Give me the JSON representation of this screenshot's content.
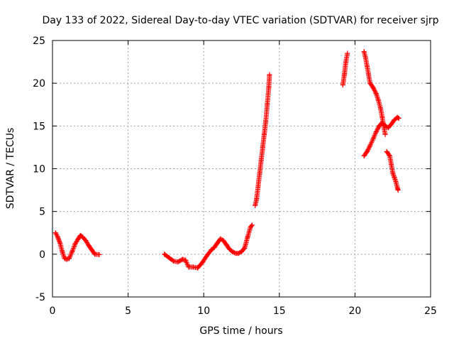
{
  "chart_data": {
    "type": "scatter",
    "title": "Day 133 of 2022, Sidereal Day-to-day VTEC variation (SDTVAR) for receiver sjrp",
    "xlabel": "GPS time / hours",
    "ylabel": "SDTVAR / TECUs",
    "xlim": [
      0,
      25
    ],
    "ylim": [
      -5,
      25
    ],
    "xticks": [
      "0",
      "5",
      "10",
      "15",
      "20",
      "25"
    ],
    "yticks": [
      "-5",
      "0",
      "5",
      "10",
      "15",
      "20",
      "25"
    ],
    "grid": true,
    "marker": "+",
    "color": "#ff0000",
    "segments": [
      [
        [
          0.2,
          2.5
        ],
        [
          0.35,
          2.0
        ],
        [
          0.5,
          1.3
        ],
        [
          0.65,
          0.3
        ],
        [
          0.8,
          -0.5
        ],
        [
          0.95,
          -0.6
        ],
        [
          1.1,
          -0.5
        ],
        [
          1.3,
          0.3
        ],
        [
          1.5,
          1.2
        ],
        [
          1.7,
          1.8
        ],
        [
          1.85,
          2.2
        ],
        [
          2.0,
          2.0
        ],
        [
          2.2,
          1.6
        ],
        [
          2.4,
          1.0
        ],
        [
          2.6,
          0.5
        ],
        [
          2.8,
          0.0
        ],
        [
          3.1,
          -0.05
        ]
      ],
      [
        [
          7.4,
          0.0
        ],
        [
          7.7,
          -0.4
        ],
        [
          8.0,
          -0.8
        ],
        [
          8.3,
          -0.9
        ],
        [
          8.6,
          -0.6
        ],
        [
          8.8,
          -0.7
        ],
        [
          9.0,
          -1.5
        ],
        [
          9.3,
          -1.5
        ],
        [
          9.6,
          -1.6
        ],
        [
          9.9,
          -1.0
        ],
        [
          10.2,
          -0.2
        ],
        [
          10.5,
          0.5
        ],
        [
          10.7,
          0.8
        ],
        [
          10.9,
          1.3
        ],
        [
          11.1,
          1.8
        ],
        [
          11.3,
          1.6
        ],
        [
          11.5,
          1.1
        ],
        [
          11.7,
          0.6
        ],
        [
          11.9,
          0.3
        ],
        [
          12.1,
          0.1
        ],
        [
          12.3,
          0.1
        ],
        [
          12.5,
          0.3
        ],
        [
          12.7,
          0.7
        ],
        [
          12.9,
          2.0
        ],
        [
          13.1,
          3.2
        ],
        [
          13.2,
          3.4
        ]
      ],
      [
        [
          13.4,
          5.7
        ],
        [
          13.5,
          6.5
        ],
        [
          13.6,
          8.0
        ],
        [
          13.7,
          9.5
        ],
        [
          13.8,
          11.0
        ],
        [
          13.9,
          12.5
        ],
        [
          14.0,
          14.0
        ],
        [
          14.1,
          15.5
        ],
        [
          14.2,
          17.5
        ],
        [
          14.3,
          19.5
        ],
        [
          14.35,
          21.0
        ]
      ],
      [
        [
          19.2,
          19.8
        ],
        [
          19.3,
          21.0
        ],
        [
          19.4,
          22.5
        ],
        [
          19.5,
          23.5
        ]
      ],
      [
        [
          20.6,
          23.7
        ],
        [
          20.7,
          23.0
        ],
        [
          20.8,
          22.0
        ],
        [
          20.9,
          21.0
        ],
        [
          21.0,
          20.0
        ],
        [
          21.2,
          19.5
        ],
        [
          21.4,
          18.8
        ],
        [
          21.55,
          18.0
        ],
        [
          21.7,
          17.0
        ],
        [
          21.8,
          16.0
        ],
        [
          21.9,
          15.0
        ],
        [
          22.0,
          14.0
        ]
      ],
      [
        [
          20.6,
          11.5
        ],
        [
          20.8,
          12.0
        ],
        [
          21.0,
          12.7
        ],
        [
          21.2,
          13.5
        ],
        [
          21.4,
          14.3
        ],
        [
          21.6,
          15.0
        ],
        [
          21.8,
          15.4
        ],
        [
          22.0,
          15.0
        ],
        [
          22.2,
          14.8
        ],
        [
          22.4,
          15.2
        ],
        [
          22.6,
          15.7
        ],
        [
          22.8,
          16.0
        ],
        [
          22.9,
          15.9
        ]
      ],
      [
        [
          22.1,
          12.0
        ],
        [
          22.3,
          11.5
        ],
        [
          22.4,
          10.5
        ],
        [
          22.5,
          9.5
        ],
        [
          22.6,
          9.0
        ],
        [
          22.7,
          8.5
        ],
        [
          22.8,
          7.8
        ],
        [
          22.85,
          7.5
        ]
      ]
    ]
  }
}
